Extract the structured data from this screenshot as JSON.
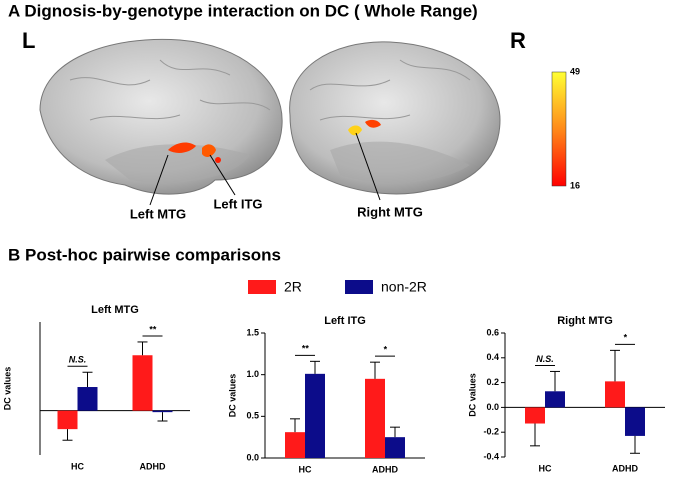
{
  "panel_a": {
    "title": "A Dignosis-by-genotype interaction on DC ( Whole Range)",
    "left_label": "L",
    "right_label": "R",
    "colorbar_max": "49",
    "colorbar_min": "16",
    "labels": [
      "Left MTG",
      "Left ITG",
      "Right MTG"
    ]
  },
  "panel_b": {
    "title": "B Post-hoc pairwise comparisons"
  },
  "chart_data": [
    {
      "type": "bar",
      "title": "Left MTG",
      "ylabel": "DC values",
      "categories": [
        "HC",
        "ADHD"
      ],
      "series": [
        {
          "name": "2R",
          "color": "#ff1a1a",
          "values": [
            -0.25,
            0.75
          ],
          "errors": [
            0.15,
            0.18
          ]
        },
        {
          "name": "non-2R",
          "color": "#0c0c8a",
          "values": [
            0.32,
            -0.02
          ],
          "errors": [
            0.2,
            0.12
          ]
        }
      ],
      "significance": [
        "N.S.",
        "**"
      ],
      "ylim": [
        -0.6,
        1.2
      ]
    },
    {
      "type": "bar",
      "title": "Left ITG",
      "ylabel": "DC values",
      "categories": [
        "HC",
        "ADHD"
      ],
      "series": [
        {
          "name": "2R",
          "color": "#ff1a1a",
          "values": [
            0.31,
            0.95
          ],
          "errors": [
            0.16,
            0.2
          ]
        },
        {
          "name": "non-2R",
          "color": "#0c0c8a",
          "values": [
            1.01,
            0.25
          ],
          "errors": [
            0.15,
            0.12
          ]
        }
      ],
      "significance": [
        "**",
        "*"
      ],
      "ylim": [
        0,
        1.5
      ],
      "yticks": [
        {
          "value": 0,
          "label": "0.0"
        },
        0.5,
        {
          "value": 1,
          "label": "1.0"
        },
        1.5
      ]
    },
    {
      "type": "bar",
      "title": "Right MTG",
      "ylabel": "DC values",
      "categories": [
        "HC",
        "ADHD"
      ],
      "series": [
        {
          "name": "2R",
          "color": "#ff1a1a",
          "values": [
            -0.13,
            0.21
          ],
          "errors": [
            0.18,
            0.25
          ]
        },
        {
          "name": "non-2R",
          "color": "#0c0c8a",
          "values": [
            0.13,
            -0.23
          ],
          "errors": [
            0.16,
            0.14
          ]
        }
      ],
      "significance": [
        "N.S.",
        "*"
      ],
      "ylim": [
        -0.4,
        0.6
      ],
      "yticks": [
        -0.4,
        -0.2,
        {
          "value": 0,
          "label": "0.0"
        },
        0.2,
        0.4,
        0.6
      ]
    }
  ]
}
